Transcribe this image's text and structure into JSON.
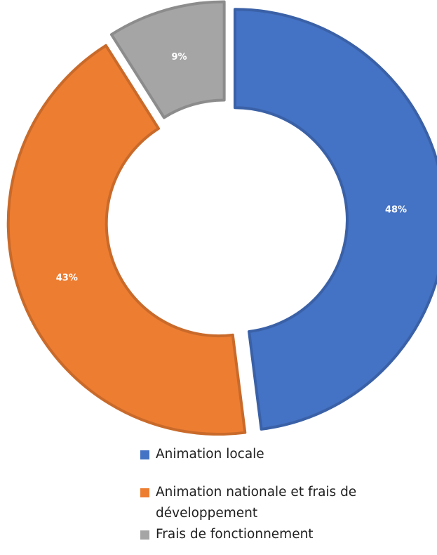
{
  "chart_data": {
    "type": "pie",
    "variant": "donut",
    "title": "",
    "categories": [
      "Animation locale",
      "Animation nationale et frais de développement",
      "Frais de fonctionnement"
    ],
    "values": [
      48,
      43,
      9
    ],
    "labels": [
      "48%",
      "43%",
      "9%"
    ],
    "colors": [
      "#4472C4",
      "#ED7D31",
      "#A5A5A5"
    ],
    "label_color": "#ffffff",
    "legend_position": "bottom"
  }
}
